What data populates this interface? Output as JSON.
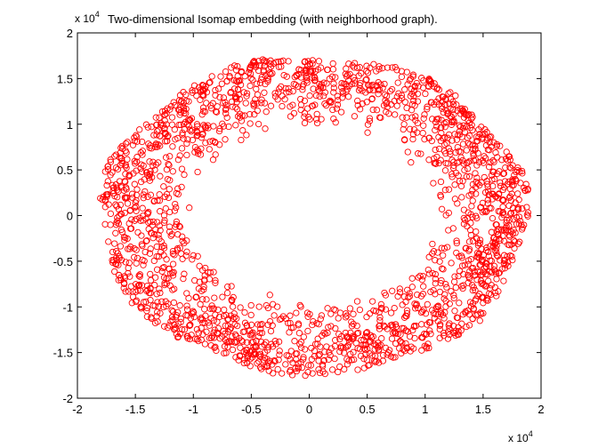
{
  "chart_data": {
    "type": "scatter",
    "title": "Two-dimensional Isomap embedding (with neighborhood graph).",
    "xlabel": "",
    "ylabel": "",
    "x_multiplier": {
      "base": "x 10",
      "exp": "4"
    },
    "y_multiplier": {
      "base": "x 10",
      "exp": "4"
    },
    "xlim": [
      -2,
      2
    ],
    "ylim": [
      -2,
      2
    ],
    "x_ticks": [
      -2,
      -1.5,
      -1,
      -0.5,
      0,
      0.5,
      1,
      1.5,
      2
    ],
    "y_ticks": [
      -2,
      -1.5,
      -1,
      -0.5,
      0,
      0.5,
      1,
      1.5,
      2
    ],
    "x_tick_labels": [
      "-2",
      "-1.5",
      "-1",
      "-0.5",
      "0",
      "0.5",
      "1",
      "1.5",
      "2"
    ],
    "y_tick_labels": [
      "-2",
      "-1.5",
      "-1",
      "-0.5",
      "0",
      "0.5",
      "1",
      "1.5",
      "2"
    ],
    "grid": false,
    "marker": "circle-open",
    "marker_color": "#ff0000",
    "axis_color": "#000000",
    "annulus": {
      "center": [
        0.04,
        0.0
      ],
      "outer_radius": [
        1.84,
        1.73
      ],
      "inner_radius": [
        1.05,
        0.93
      ],
      "point_count": 2200
    }
  }
}
